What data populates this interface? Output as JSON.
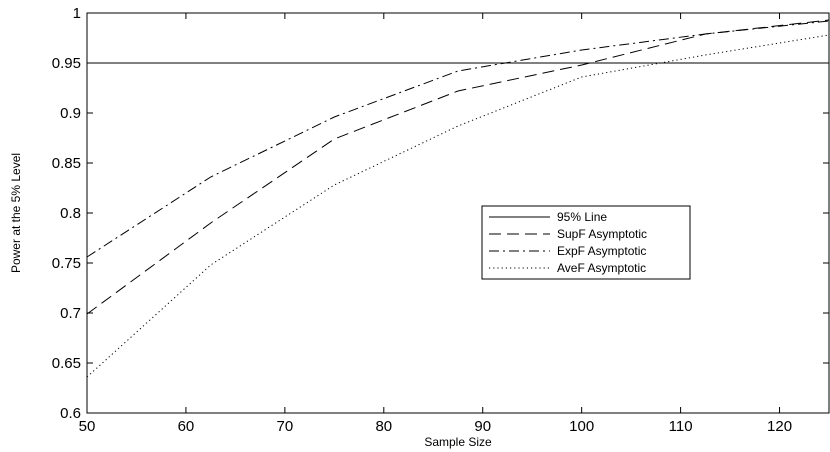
{
  "chart_data": {
    "type": "line",
    "title": "",
    "xlabel": "Sample Size",
    "ylabel": "Power at the 5% Level",
    "xlim": [
      50,
      125
    ],
    "ylim": [
      0.6,
      1
    ],
    "xticks": [
      50,
      60,
      70,
      80,
      90,
      100,
      110,
      120
    ],
    "yticks": [
      0.6,
      0.65,
      0.7,
      0.75,
      0.8,
      0.85,
      0.9,
      0.95,
      1
    ],
    "ytick_labels": [
      "0.6",
      "0.65",
      "0.7",
      "0.75",
      "0.8",
      "0.85",
      "0.9",
      "0.95",
      "1"
    ],
    "grid": false,
    "legend_position": "center-right",
    "series": [
      {
        "name": "95% Line",
        "style": "solid",
        "x": [
          50,
          125
        ],
        "values": [
          0.95,
          0.95
        ]
      },
      {
        "name": "SupF Asymptotic",
        "style": "dashed",
        "x": [
          50,
          62.5,
          75,
          87.5,
          100,
          112.5,
          125
        ],
        "values": [
          0.699,
          0.79,
          0.874,
          0.922,
          0.948,
          0.979,
          0.993
        ]
      },
      {
        "name": "ExpF Asymptotic",
        "style": "dashdot",
        "x": [
          50,
          62.5,
          75,
          87.5,
          100,
          112.5,
          125
        ],
        "values": [
          0.756,
          0.836,
          0.896,
          0.942,
          0.963,
          0.979,
          0.992
        ]
      },
      {
        "name": "AveF Asymptotic",
        "style": "dotted",
        "x": [
          50,
          62.5,
          75,
          87.5,
          100,
          112.5,
          125
        ],
        "values": [
          0.636,
          0.748,
          0.828,
          0.887,
          0.936,
          0.958,
          0.978
        ]
      }
    ]
  }
}
